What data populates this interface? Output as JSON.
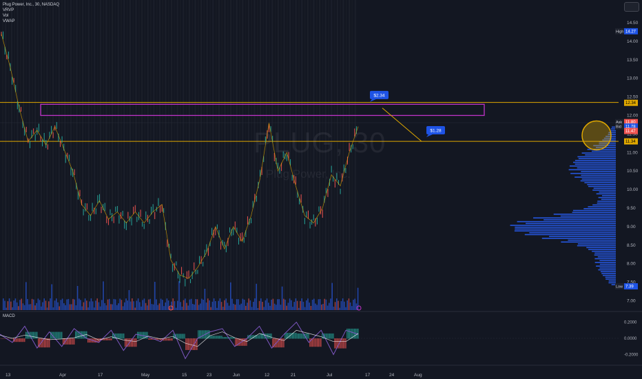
{
  "legend": {
    "symbol_line": "Plug Power, Inc., 30, NASDAQ",
    "indicators": [
      "VRVP",
      "Vol",
      "VWAP"
    ]
  },
  "watermark": {
    "ticker": "PLUG, 30",
    "name": "Plug Power, Inc."
  },
  "annotations": {
    "upper_callout": "$2.34",
    "lower_callout": "$1.28"
  },
  "price_axis": {
    "ticks": [
      "14.50",
      "14.00",
      "13.50",
      "13.00",
      "12.50",
      "12.00",
      "11.50",
      "11.00",
      "10.50",
      "10.00",
      "9.50",
      "9.00",
      "8.50",
      "8.00",
      "7.50",
      "7.00"
    ],
    "high_label": "High",
    "high_value": "14.27",
    "low_label": "Low",
    "low_value": "7.39",
    "ask_label": "Ask",
    "ask_value": "11.80",
    "bid_label": "Bid",
    "bid_value": "11.78",
    "last_value": "12.34",
    "level_value": "11.34",
    "current_value": "11.47"
  },
  "macd": {
    "label": "MACD",
    "ticks": [
      "0.2000",
      "0.0000",
      "-0.2000"
    ]
  },
  "time_axis": {
    "ticks": [
      "13",
      "Apr",
      "17",
      "May",
      "15",
      "23",
      "Jun",
      "12",
      "21",
      "Jul",
      "17",
      "24",
      "Aug"
    ]
  },
  "colors": {
    "background": "#131722",
    "up": "#26a69a",
    "down": "#ef5350",
    "orange_line": "#e0a800",
    "magenta_box": "#c133c9",
    "volume_profile": "#2962ff",
    "callout": "#1e53e5",
    "macd_line": "#7e57c2",
    "signal_line": "#ffffff"
  },
  "chart_data": {
    "type": "line",
    "title": "Plug Power, Inc., 30, NASDAQ",
    "price_range": [
      6.8,
      14.8
    ],
    "macd_range": [
      -0.3,
      0.3
    ],
    "date_labels": [
      "13",
      "Apr",
      "17",
      "May",
      "15",
      "23",
      "Jun",
      "12",
      "21",
      "Jul"
    ],
    "close_path": [
      {
        "x": "13",
        "y": 14.2
      },
      {
        "x": "",
        "y": 13.3
      },
      {
        "x": "",
        "y": 12.2
      },
      {
        "x": "",
        "y": 11.3
      },
      {
        "x": "",
        "y": 11.6
      },
      {
        "x": "",
        "y": 11.2
      },
      {
        "x": "",
        "y": 11.7
      },
      {
        "x": "",
        "y": 11.1
      },
      {
        "x": "Apr",
        "y": 10.5
      },
      {
        "x": "",
        "y": 9.6
      },
      {
        "x": "",
        "y": 9.3
      },
      {
        "x": "17",
        "y": 9.7
      },
      {
        "x": "",
        "y": 9.2
      },
      {
        "x": "",
        "y": 9.4
      },
      {
        "x": "",
        "y": 9.1
      },
      {
        "x": "",
        "y": 9.4
      },
      {
        "x": "May",
        "y": 9.1
      },
      {
        "x": "",
        "y": 9.4
      },
      {
        "x": "",
        "y": 9.6
      },
      {
        "x": "",
        "y": 8.1
      },
      {
        "x": "",
        "y": 7.7
      },
      {
        "x": "15",
        "y": 7.6
      },
      {
        "x": "",
        "y": 7.9
      },
      {
        "x": "23",
        "y": 8.3
      },
      {
        "x": "",
        "y": 9.0
      },
      {
        "x": "",
        "y": 8.4
      },
      {
        "x": "Jun",
        "y": 9.0
      },
      {
        "x": "",
        "y": 8.6
      },
      {
        "x": "",
        "y": 9.3
      },
      {
        "x": "",
        "y": 10.3
      },
      {
        "x": "12",
        "y": 11.8
      },
      {
        "x": "",
        "y": 10.5
      },
      {
        "x": "",
        "y": 11.0
      },
      {
        "x": "21",
        "y": 10.1
      },
      {
        "x": "",
        "y": 9.3
      },
      {
        "x": "",
        "y": 9.1
      },
      {
        "x": "",
        "y": 9.5
      },
      {
        "x": "",
        "y": 10.4
      },
      {
        "x": "Jul",
        "y": 10.1
      },
      {
        "x": "",
        "y": 11.0
      },
      {
        "x": "",
        "y": 11.7
      }
    ],
    "horizontal_levels": [
      12.35,
      11.3
    ],
    "highlight_zone": {
      "from": 12.0,
      "to": 12.3
    },
    "callouts": [
      {
        "text": "$2.34",
        "price": 12.55
      },
      {
        "text": "$1.28",
        "price": 11.6
      }
    ],
    "volume_profile_peak_price": 9.0,
    "macd_values": [
      0.05,
      -0.05,
      0.15,
      -0.12,
      0.08,
      -0.1,
      0.12,
      0.0,
      -0.05,
      0.1,
      -0.15,
      0.05,
      0.02,
      -0.04,
      0.1,
      -0.25,
      0.0,
      0.08,
      0.12,
      -0.1,
      0.0,
      0.15,
      -0.12,
      0.05,
      0.2,
      -0.05,
      0.1,
      -0.2,
      0.1,
      0.05
    ]
  }
}
